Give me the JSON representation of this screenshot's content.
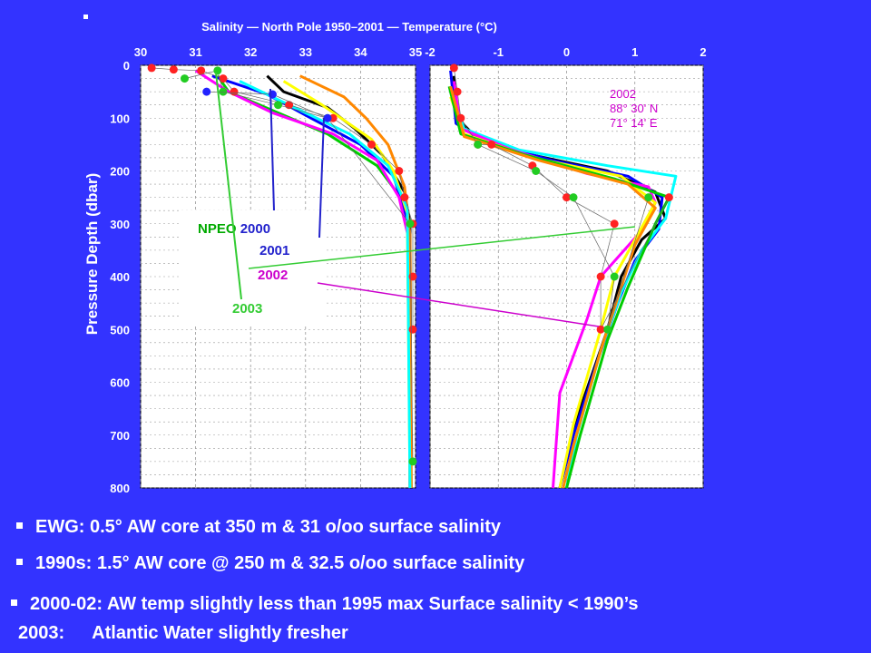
{
  "chart_data": {
    "type": "line",
    "title": "Salinity  —  North Pole 1950–2001  —  Temperature (°C)",
    "ylabel": "Pressure Depth (dbar)",
    "y_ticks": [
      0,
      100,
      200,
      300,
      400,
      500,
      600,
      700,
      800
    ],
    "ylim": [
      0,
      800
    ],
    "salinity_panel": {
      "xlim": [
        30,
        35
      ],
      "x_ticks": [
        "30",
        "31",
        "32",
        "33",
        "34",
        "35"
      ]
    },
    "temperature_panel": {
      "xlim": [
        -2,
        2
      ],
      "x_ticks": [
        "-2",
        "-1",
        "0",
        "1",
        "2"
      ]
    },
    "station_label": [
      "2002",
      "88° 30' N",
      "71° 14' E"
    ],
    "legend": [
      {
        "prefix": "NPEO ",
        "name": "2000",
        "color": "#2222cc"
      },
      {
        "prefix": "",
        "name": "2001",
        "color": "#2222cc"
      },
      {
        "prefix": "",
        "name": "2002",
        "color": "#cc00cc"
      },
      {
        "prefix": "",
        "name": "2003",
        "color": "#33cc33"
      }
    ],
    "legend_prefix_color": "#00aa00",
    "salinity_series": [
      {
        "color": "#000000",
        "points": [
          [
            32.3,
            20
          ],
          [
            32.6,
            50
          ],
          [
            33.4,
            80
          ],
          [
            33.9,
            120
          ],
          [
            34.4,
            170
          ],
          [
            34.8,
            240
          ],
          [
            34.9,
            300
          ],
          [
            34.92,
            800
          ]
        ]
      },
      {
        "color": "#00cc00",
        "points": [
          [
            31.4,
            20
          ],
          [
            31.6,
            50
          ],
          [
            32.5,
            90
          ],
          [
            33.4,
            130
          ],
          [
            34.3,
            190
          ],
          [
            34.8,
            260
          ],
          [
            34.88,
            320
          ],
          [
            34.9,
            800
          ]
        ]
      },
      {
        "color": "#0000ff",
        "points": [
          [
            31.3,
            20
          ],
          [
            32.3,
            55
          ],
          [
            33.1,
            100
          ],
          [
            34.0,
            150
          ],
          [
            34.6,
            210
          ],
          [
            34.87,
            300
          ],
          [
            34.9,
            800
          ]
        ]
      },
      {
        "color": "#ff00ff",
        "points": [
          [
            31.0,
            10
          ],
          [
            31.6,
            50
          ],
          [
            32.4,
            90
          ],
          [
            33.5,
            130
          ],
          [
            34.3,
            180
          ],
          [
            34.7,
            250
          ],
          [
            34.88,
            330
          ],
          [
            34.9,
            800
          ]
        ]
      },
      {
        "color": "#ff8800",
        "points": [
          [
            32.9,
            20
          ],
          [
            33.7,
            60
          ],
          [
            34.1,
            100
          ],
          [
            34.5,
            150
          ],
          [
            34.8,
            230
          ],
          [
            34.9,
            320
          ],
          [
            34.92,
            800
          ]
        ]
      },
      {
        "color": "#ffff00",
        "points": [
          [
            32.6,
            30
          ],
          [
            33.3,
            75
          ],
          [
            34.2,
            140
          ],
          [
            34.6,
            200
          ],
          [
            34.85,
            280
          ],
          [
            34.9,
            800
          ]
        ]
      },
      {
        "color": "#00ffff",
        "points": [
          [
            31.8,
            30
          ],
          [
            32.8,
            80
          ],
          [
            33.8,
            130
          ],
          [
            34.5,
            190
          ],
          [
            34.85,
            270
          ],
          [
            34.9,
            800
          ]
        ]
      }
    ],
    "salinity_markers": [
      {
        "color": "#ff2222",
        "points": [
          [
            30.2,
            5
          ],
          [
            30.6,
            8
          ],
          [
            31.1,
            10
          ],
          [
            31.5,
            25
          ],
          [
            31.7,
            50
          ],
          [
            32.7,
            75
          ],
          [
            33.5,
            100
          ],
          [
            34.2,
            150
          ],
          [
            34.7,
            200
          ],
          [
            34.8,
            250
          ],
          [
            34.95,
            300
          ],
          [
            34.95,
            400
          ],
          [
            34.95,
            500
          ]
        ]
      },
      {
        "color": "#22cc22",
        "points": [
          [
            30.8,
            25
          ],
          [
            31.4,
            10
          ],
          [
            31.5,
            50
          ],
          [
            32.5,
            75
          ],
          [
            33.4,
            100
          ],
          [
            34.9,
            300
          ],
          [
            34.95,
            750
          ]
        ]
      },
      {
        "color": "#2222ff",
        "points": [
          [
            31.2,
            50
          ],
          [
            32.4,
            55
          ],
          [
            33.4,
            100
          ]
        ]
      }
    ],
    "temperature_series": [
      {
        "color": "#000000",
        "points": [
          [
            -1.65,
            20
          ],
          [
            -1.6,
            100
          ],
          [
            -1.3,
            140
          ],
          [
            -0.5,
            170
          ],
          [
            0.6,
            200
          ],
          [
            1.3,
            240
          ],
          [
            1.45,
            290
          ],
          [
            1.1,
            330
          ],
          [
            0.8,
            400
          ],
          [
            0.6,
            500
          ],
          [
            0.2,
            650
          ],
          [
            -0.1,
            800
          ]
        ]
      },
      {
        "color": "#0000ff",
        "points": [
          [
            -1.7,
            10
          ],
          [
            -1.62,
            110
          ],
          [
            -1.2,
            145
          ],
          [
            -0.2,
            180
          ],
          [
            0.9,
            210
          ],
          [
            1.4,
            250
          ],
          [
            1.35,
            310
          ],
          [
            1.0,
            370
          ],
          [
            0.75,
            450
          ],
          [
            0.45,
            560
          ],
          [
            0.1,
            700
          ],
          [
            -0.1,
            800
          ]
        ]
      },
      {
        "color": "#00ffff",
        "points": [
          [
            -1.7,
            50
          ],
          [
            -1.5,
            120
          ],
          [
            -0.7,
            160
          ],
          [
            0.6,
            190
          ],
          [
            1.6,
            210
          ],
          [
            1.45,
            290
          ],
          [
            1.1,
            350
          ],
          [
            0.8,
            430
          ],
          [
            0.5,
            540
          ],
          [
            0.15,
            700
          ],
          [
            0.0,
            800
          ]
        ]
      },
      {
        "color": "#ff00ff",
        "points": [
          [
            -1.65,
            30
          ],
          [
            -1.55,
            120
          ],
          [
            -0.8,
            160
          ],
          [
            0.3,
            205
          ],
          [
            1.2,
            230
          ],
          [
            1.3,
            260
          ],
          [
            1.05,
            320
          ],
          [
            0.5,
            400
          ],
          [
            0.3,
            480
          ],
          [
            -0.1,
            620
          ],
          [
            -0.2,
            800
          ]
        ]
      },
      {
        "color": "#ffff00",
        "points": [
          [
            -1.7,
            60
          ],
          [
            -1.5,
            130
          ],
          [
            -0.5,
            175
          ],
          [
            0.8,
            210
          ],
          [
            1.3,
            260
          ],
          [
            1.0,
            330
          ],
          [
            0.7,
            400
          ],
          [
            0.5,
            500
          ],
          [
            0.1,
            680
          ],
          [
            -0.1,
            800
          ]
        ]
      },
      {
        "color": "#00cc00",
        "points": [
          [
            -1.72,
            40
          ],
          [
            -1.55,
            130
          ],
          [
            -0.6,
            170
          ],
          [
            0.7,
            215
          ],
          [
            1.5,
            250
          ],
          [
            1.3,
            300
          ],
          [
            1.1,
            360
          ],
          [
            0.9,
            420
          ],
          [
            0.6,
            520
          ],
          [
            0.2,
            700
          ],
          [
            0.0,
            800
          ]
        ]
      },
      {
        "color": "#ff8800",
        "points": [
          [
            -1.7,
            40
          ],
          [
            -1.5,
            135
          ],
          [
            -0.4,
            180
          ],
          [
            0.9,
            225
          ],
          [
            1.3,
            270
          ],
          [
            1.0,
            340
          ],
          [
            0.8,
            420
          ],
          [
            0.5,
            540
          ],
          [
            0.1,
            720
          ],
          [
            -0.05,
            800
          ]
        ]
      }
    ],
    "temperature_markers": [
      {
        "color": "#ff2222",
        "points": [
          [
            -1.65,
            5
          ],
          [
            -1.6,
            50
          ],
          [
            -1.55,
            100
          ],
          [
            -1.3,
            150
          ],
          [
            -1.1,
            150
          ],
          [
            -0.5,
            190
          ],
          [
            0.0,
            250
          ],
          [
            0.7,
            300
          ],
          [
            0.5,
            400
          ],
          [
            0.5,
            500
          ],
          [
            1.5,
            250
          ]
        ]
      },
      {
        "color": "#22cc22",
        "points": [
          [
            -1.3,
            150
          ],
          [
            -0.45,
            200
          ],
          [
            0.1,
            250
          ],
          [
            0.7,
            400
          ],
          [
            0.6,
            500
          ],
          [
            1.2,
            250
          ]
        ]
      }
    ],
    "annotation_lines": [
      {
        "color": "#33cc33",
        "points": [
          [
            274,
            296
          ],
          [
            700,
            250
          ]
        ]
      },
      {
        "color": "#cc00cc",
        "points": [
          [
            350,
            312
          ],
          [
            660,
            360
          ]
        ]
      }
    ]
  },
  "bullets": [
    {
      "text": "EWG:  0.5° AW core at 350 m & 31 o/oo surface salinity"
    },
    {
      "text": "1990s:   1.5° AW core @ 250 m & 32.5 o/oo surface salinity"
    },
    {
      "text": "2000-02:  AW temp slightly less than 1995 max  Surface salinity  < 1990’s"
    }
  ],
  "footer": {
    "year": "2003:",
    "text": "Atlantic Water slightly fresher"
  }
}
